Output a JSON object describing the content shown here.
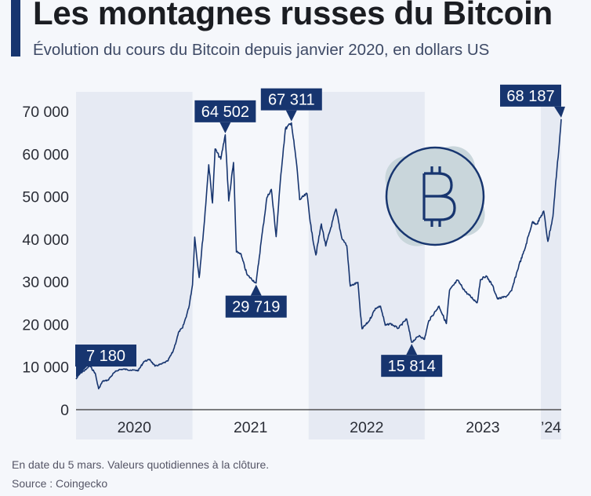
{
  "header": {
    "title": "Les montagnes russes du Bitcoin",
    "subtitle": "Évolution du cours du Bitcoin depuis janvier 2020, en dollars US"
  },
  "footer": {
    "note": "En date du 5 mars. Valeurs quotidiennes à la clôture.",
    "source": "Source : Coingecko"
  },
  "colors": {
    "line": "#17356f",
    "callout_bg": "#17356f",
    "band": "#e6eaf3",
    "background": "#f5f7fb",
    "logo_bg": "#c9d6db",
    "logo_stroke": "#17356f"
  },
  "icons": {
    "logo": "bitcoin-logo-icon"
  },
  "chart_data": {
    "type": "line",
    "title": "Les montagnes russes du Bitcoin",
    "subtitle": "Évolution du cours du Bitcoin depuis janvier 2020, en dollars US",
    "xlabel": "",
    "ylabel": "",
    "x_range": [
      "2020-01-01",
      "2024-03-05"
    ],
    "ylim": [
      0,
      70000
    ],
    "y_ticks": [
      0,
      10000,
      20000,
      30000,
      40000,
      50000,
      60000,
      70000
    ],
    "y_tick_labels": [
      "0",
      "10 000",
      "20 000",
      "30 000",
      "40 000",
      "50 000",
      "60 000",
      "70 000"
    ],
    "x_year_labels": [
      "2020",
      "2021",
      "2022",
      "2023",
      "’24"
    ],
    "grid": false,
    "legend": "none",
    "series": [
      {
        "points": [
          [
            "2020-01-01",
            7180
          ],
          [
            "2020-01-15",
            8600
          ],
          [
            "2020-02-01",
            9400
          ],
          [
            "2020-02-13",
            10300
          ],
          [
            "2020-03-01",
            8600
          ],
          [
            "2020-03-12",
            4900
          ],
          [
            "2020-03-25",
            6700
          ],
          [
            "2020-04-10",
            6900
          ],
          [
            "2020-04-30",
            8700
          ],
          [
            "2020-05-15",
            9400
          ],
          [
            "2020-06-01",
            9500
          ],
          [
            "2020-06-20",
            9300
          ],
          [
            "2020-07-15",
            9200
          ],
          [
            "2020-08-01",
            11300
          ],
          [
            "2020-08-20",
            11800
          ],
          [
            "2020-09-05",
            10200
          ],
          [
            "2020-09-25",
            10700
          ],
          [
            "2020-10-15",
            11400
          ],
          [
            "2020-11-01",
            13700
          ],
          [
            "2020-11-20",
            18400
          ],
          [
            "2020-12-01",
            19200
          ],
          [
            "2020-12-20",
            23800
          ],
          [
            "2021-01-01",
            29300
          ],
          [
            "2021-01-08",
            40500
          ],
          [
            "2021-01-22",
            31000
          ],
          [
            "2021-02-08",
            44600
          ],
          [
            "2021-02-21",
            57500
          ],
          [
            "2021-03-05",
            48500
          ],
          [
            "2021-03-13",
            61200
          ],
          [
            "2021-03-31",
            58800
          ],
          [
            "2021-04-14",
            64502
          ],
          [
            "2021-04-25",
            49000
          ],
          [
            "2021-05-10",
            58000
          ],
          [
            "2021-05-19",
            37000
          ],
          [
            "2021-06-01",
            36700
          ],
          [
            "2021-06-22",
            31600
          ],
          [
            "2021-07-20",
            29719
          ],
          [
            "2021-08-05",
            39500
          ],
          [
            "2021-08-23",
            49800
          ],
          [
            "2021-09-06",
            51700
          ],
          [
            "2021-09-21",
            40600
          ],
          [
            "2021-10-06",
            55300
          ],
          [
            "2021-10-20",
            65900
          ],
          [
            "2021-11-08",
            67311
          ],
          [
            "2021-11-25",
            57200
          ],
          [
            "2021-12-04",
            49300
          ],
          [
            "2021-12-27",
            50700
          ],
          [
            "2022-01-10",
            41900
          ],
          [
            "2022-01-24",
            36300
          ],
          [
            "2022-02-10",
            43600
          ],
          [
            "2022-02-24",
            38400
          ],
          [
            "2022-03-28",
            47100
          ],
          [
            "2022-04-15",
            40400
          ],
          [
            "2022-05-01",
            38500
          ],
          [
            "2022-05-12",
            29000
          ],
          [
            "2022-06-05",
            29900
          ],
          [
            "2022-06-13",
            22300
          ],
          [
            "2022-06-18",
            19000
          ],
          [
            "2022-07-10",
            20800
          ],
          [
            "2022-07-30",
            23800
          ],
          [
            "2022-08-15",
            24300
          ],
          [
            "2022-08-30",
            19800
          ],
          [
            "2022-09-15",
            20200
          ],
          [
            "2022-10-10",
            19100
          ],
          [
            "2022-11-05",
            21300
          ],
          [
            "2022-11-21",
            15814
          ],
          [
            "2022-12-15",
            17400
          ],
          [
            "2022-12-31",
            16500
          ],
          [
            "2023-01-14",
            20900
          ],
          [
            "2023-02-15",
            24300
          ],
          [
            "2023-03-10",
            20200
          ],
          [
            "2023-03-20",
            28000
          ],
          [
            "2023-04-14",
            30400
          ],
          [
            "2023-05-10",
            27600
          ],
          [
            "2023-06-15",
            25100
          ],
          [
            "2023-06-25",
            30500
          ],
          [
            "2023-07-13",
            31400
          ],
          [
            "2023-08-01",
            29300
          ],
          [
            "2023-08-18",
            26000
          ],
          [
            "2023-09-15",
            26600
          ],
          [
            "2023-10-01",
            27900
          ],
          [
            "2023-10-24",
            33900
          ],
          [
            "2023-11-10",
            37300
          ],
          [
            "2023-12-05",
            44000
          ],
          [
            "2023-12-20",
            43600
          ],
          [
            "2024-01-10",
            46600
          ],
          [
            "2024-01-23",
            39500
          ],
          [
            "2024-02-08",
            45300
          ],
          [
            "2024-02-15",
            51800
          ],
          [
            "2024-02-28",
            62500
          ],
          [
            "2024-03-05",
            68187
          ]
        ]
      }
    ],
    "callouts": [
      {
        "label": "7 180",
        "date": "2020-01-01",
        "value": 7180
      },
      {
        "label": "64 502",
        "date": "2021-04-14",
        "value": 64502
      },
      {
        "label": "29 719",
        "date": "2021-07-20",
        "value": 29719
      },
      {
        "label": "67 311",
        "date": "2021-11-08",
        "value": 67311
      },
      {
        "label": "15 814",
        "date": "2022-11-21",
        "value": 15814
      },
      {
        "label": "68 187",
        "date": "2024-03-05",
        "value": 68187
      }
    ]
  }
}
